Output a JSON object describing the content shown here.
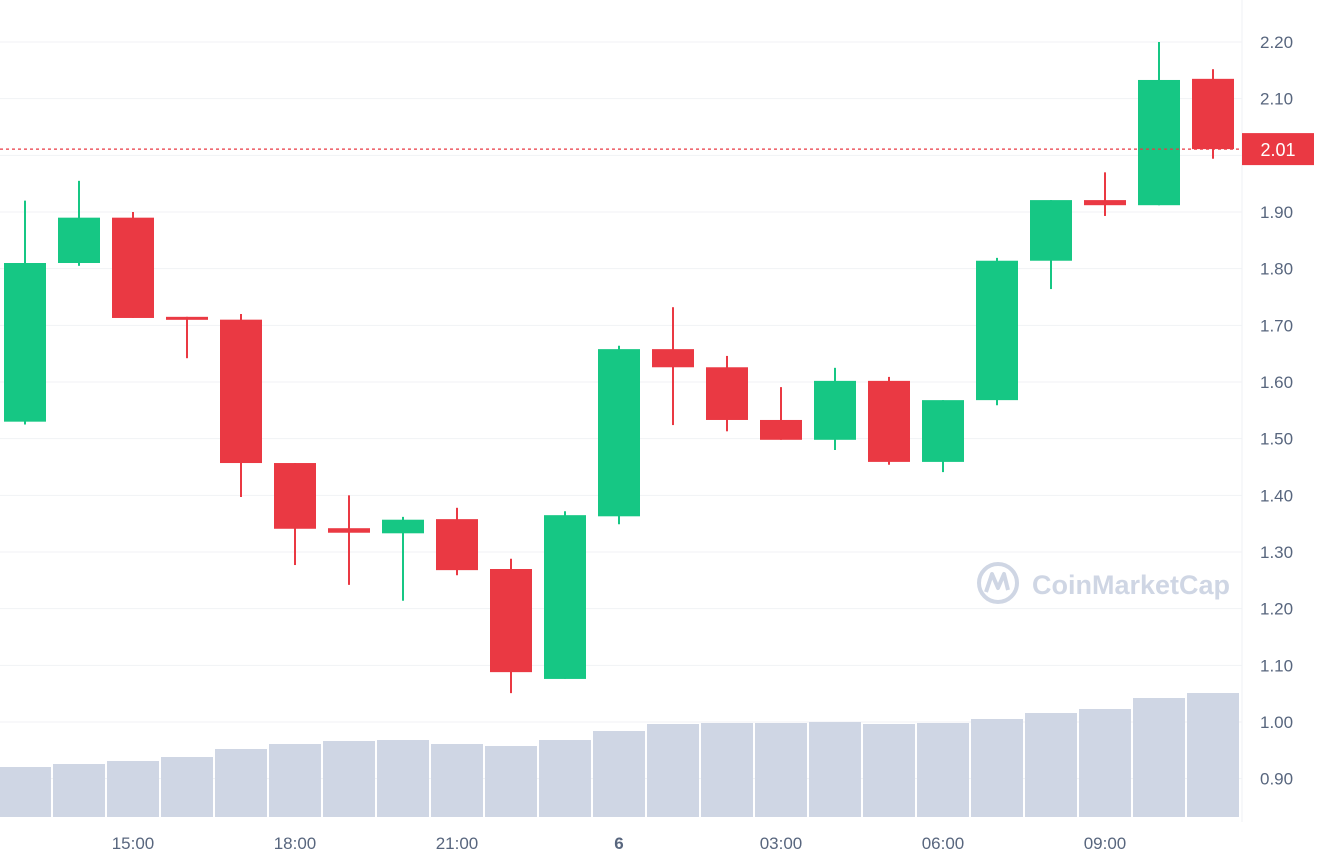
{
  "chart_data": {
    "type": "candlestick",
    "title": "",
    "xlabel": "",
    "ylabel": "",
    "ylim": [
      0.85,
      2.25
    ],
    "y_ticks": [
      "2.20",
      "2.10",
      "1.90",
      "1.80",
      "1.70",
      "1.60",
      "1.50",
      "1.40",
      "1.30",
      "1.20",
      "1.10",
      "1.00",
      "0.90"
    ],
    "x_ticks": [
      {
        "label": "15:00",
        "index": 2,
        "bold": false
      },
      {
        "label": "18:00",
        "index": 5,
        "bold": false
      },
      {
        "label": "21:00",
        "index": 8,
        "bold": false
      },
      {
        "label": "6",
        "index": 11,
        "bold": true
      },
      {
        "label": "03:00",
        "index": 14,
        "bold": false
      },
      {
        "label": "06:00",
        "index": 17,
        "bold": false
      },
      {
        "label": "09:00",
        "index": 20,
        "bold": false
      }
    ],
    "grid": true,
    "colors": {
      "up": "#16c784",
      "down": "#ea3943",
      "volume": "#cfd6e4",
      "grid": "#f1f2f5",
      "axis_text": "#58667e"
    },
    "current_price": "2.01",
    "current_price_value": 2.011,
    "candles": [
      {
        "o": 1.53,
        "h": 1.92,
        "l": 1.525,
        "c": 1.81
      },
      {
        "o": 1.81,
        "h": 1.955,
        "l": 1.805,
        "c": 1.89
      },
      {
        "o": 1.89,
        "h": 1.9,
        "l": 1.713,
        "c": 1.713
      },
      {
        "o": 1.715,
        "h": 1.715,
        "l": 1.642,
        "c": 1.711
      },
      {
        "o": 1.71,
        "h": 1.72,
        "l": 1.397,
        "c": 1.457
      },
      {
        "o": 1.457,
        "h": 1.457,
        "l": 1.277,
        "c": 1.341
      },
      {
        "o": 1.342,
        "h": 1.4,
        "l": 1.242,
        "c": 1.334
      },
      {
        "o": 1.333,
        "h": 1.362,
        "l": 1.214,
        "c": 1.357
      },
      {
        "o": 1.358,
        "h": 1.378,
        "l": 1.259,
        "c": 1.268
      },
      {
        "o": 1.27,
        "h": 1.288,
        "l": 1.051,
        "c": 1.088
      },
      {
        "o": 1.076,
        "h": 1.372,
        "l": 1.076,
        "c": 1.365
      },
      {
        "o": 1.363,
        "h": 1.664,
        "l": 1.349,
        "c": 1.658
      },
      {
        "o": 1.658,
        "h": 1.732,
        "l": 1.524,
        "c": 1.626
      },
      {
        "o": 1.626,
        "h": 1.646,
        "l": 1.513,
        "c": 1.533
      },
      {
        "o": 1.533,
        "h": 1.591,
        "l": 1.498,
        "c": 1.498
      },
      {
        "o": 1.498,
        "h": 1.625,
        "l": 1.48,
        "c": 1.602
      },
      {
        "o": 1.602,
        "h": 1.609,
        "l": 1.454,
        "c": 1.459
      },
      {
        "o": 1.459,
        "h": 1.568,
        "l": 1.441,
        "c": 1.568
      },
      {
        "o": 1.568,
        "h": 1.819,
        "l": 1.559,
        "c": 1.814
      },
      {
        "o": 1.814,
        "h": 1.921,
        "l": 1.764,
        "c": 1.921
      },
      {
        "o": 1.921,
        "h": 1.97,
        "l": 1.893,
        "c": 1.912
      },
      {
        "o": 1.912,
        "h": 2.2,
        "l": 1.912,
        "c": 2.133
      },
      {
        "o": 2.135,
        "h": 2.152,
        "l": 1.994,
        "c": 2.011
      }
    ],
    "volume_relative": [
      50,
      53,
      56,
      60,
      68,
      73,
      76,
      77,
      73,
      71,
      77,
      86,
      93,
      94,
      94,
      95,
      93,
      94,
      98,
      104,
      108,
      119,
      124
    ],
    "watermark": "CoinMarketCap"
  }
}
